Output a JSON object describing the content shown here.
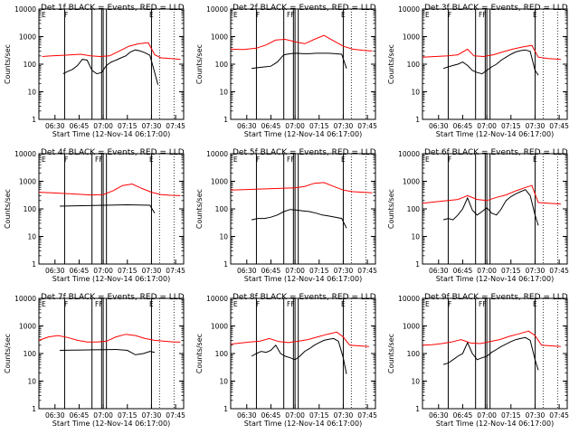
{
  "figure": {
    "background": "#ffffff",
    "colors": {
      "events": "#000000",
      "lld": "#ff0000",
      "axes": "#000000"
    }
  },
  "chart_data": [
    {
      "type": "line",
      "title": "Det 1f BLACK = Events, RED = LLD",
      "xlabel": "Start Time (12-Nov-14 06:17:00)",
      "ylabel": "Counts/sec",
      "yscale": "log",
      "ylim": [
        1,
        10000
      ],
      "yticks": [
        "1",
        "10",
        "100",
        "1000",
        "10000"
      ],
      "xticks": [
        "06:30",
        "06:45",
        "07:00",
        "07:15",
        "07:30",
        "07:45"
      ],
      "markers": [
        "E",
        "F",
        "E"
      ],
      "series": [
        {
          "name": "Events",
          "color": "#000000",
          "x": [
            "06:35",
            "06:38",
            "06:41",
            "06:44",
            "06:47",
            "06:50",
            "06:53",
            "06:56",
            "06:59",
            "07:02",
            "07:05",
            "07:08",
            "07:11",
            "07:14",
            "07:17",
            "07:20",
            "07:23",
            "07:26",
            "07:29",
            "07:32",
            "07:34"
          ],
          "values": [
            45,
            55,
            65,
            90,
            150,
            140,
            60,
            45,
            50,
            90,
            120,
            140,
            170,
            200,
            280,
            330,
            300,
            260,
            210,
            50,
            18
          ]
        },
        {
          "name": "LLD",
          "color": "#ff0000",
          "x": [
            "06:22",
            "06:28",
            "06:34",
            "06:40",
            "06:46",
            "06:52",
            "06:58",
            "07:04",
            "07:10",
            "07:16",
            "07:22",
            "07:28",
            "07:32",
            "07:36",
            "07:42",
            "07:48"
          ],
          "values": [
            190,
            200,
            210,
            220,
            230,
            200,
            190,
            200,
            300,
            450,
            550,
            600,
            220,
            170,
            160,
            150
          ]
        }
      ]
    },
    {
      "type": "line",
      "title": "Det 2f BLACK = Events, RED = LLD",
      "xlabel": "Start Time (12-Nov-14 06:17:00)",
      "ylabel": "Counts/sec",
      "yscale": "log",
      "ylim": [
        1,
        10000
      ],
      "yticks": [
        "1",
        "10",
        "100",
        "1000",
        "10000"
      ],
      "xticks": [
        "06:30",
        "06:45",
        "07:00",
        "07:15",
        "07:30",
        "07:45"
      ],
      "markers": [
        "E",
        "F",
        "FF",
        "E"
      ],
      "series": [
        {
          "name": "Events",
          "color": "#000000",
          "x": [
            "06:33",
            "06:37",
            "06:41",
            "06:45",
            "06:49",
            "06:53",
            "06:57",
            "07:01",
            "07:05",
            "07:09",
            "07:13",
            "07:17",
            "07:21",
            "07:25",
            "07:29",
            "07:32"
          ],
          "values": [
            70,
            75,
            80,
            85,
            120,
            220,
            240,
            250,
            240,
            240,
            250,
            250,
            250,
            240,
            230,
            70
          ]
        },
        {
          "name": "LLD",
          "color": "#ff0000",
          "x": [
            "06:20",
            "06:28",
            "06:36",
            "06:42",
            "06:48",
            "06:54",
            "07:00",
            "07:06",
            "07:12",
            "07:18",
            "07:24",
            "07:30",
            "07:36",
            "07:42",
            "07:48"
          ],
          "values": [
            350,
            340,
            380,
            500,
            750,
            800,
            650,
            550,
            800,
            1100,
            700,
            450,
            350,
            320,
            300
          ]
        }
      ]
    },
    {
      "type": "line",
      "title": "Det 3f BLACK = Events, RED = LLD",
      "xlabel": "Start Time (12-Nov-14 06:17:00)",
      "ylabel": "Counts/sec",
      "yscale": "log",
      "ylim": [
        1,
        10000
      ],
      "yticks": [
        "1",
        "10",
        "100",
        "1000",
        "10000"
      ],
      "xticks": [
        "06:30",
        "06:45",
        "07:00",
        "07:15",
        "07:30",
        "07:45"
      ],
      "markers": [
        "E",
        "F",
        "FF",
        "E"
      ],
      "series": [
        {
          "name": "Events",
          "color": "#000000",
          "x": [
            "06:33",
            "06:36",
            "06:39",
            "06:42",
            "06:45",
            "06:48",
            "06:51",
            "06:54",
            "06:57",
            "07:00",
            "07:03",
            "07:06",
            "07:09",
            "07:12",
            "07:15",
            "07:18",
            "07:21",
            "07:24",
            "07:27",
            "07:30",
            "07:32"
          ],
          "values": [
            70,
            80,
            90,
            100,
            120,
            90,
            60,
            50,
            45,
            60,
            80,
            100,
            140,
            180,
            230,
            280,
            310,
            330,
            290,
            60,
            40
          ]
        },
        {
          "name": "LLD",
          "color": "#ff0000",
          "x": [
            "06:20",
            "06:28",
            "06:36",
            "06:42",
            "06:48",
            "06:52",
            "06:58",
            "07:04",
            "07:10",
            "07:16",
            "07:22",
            "07:28",
            "07:32",
            "07:38",
            "07:46"
          ],
          "values": [
            180,
            190,
            200,
            220,
            350,
            200,
            190,
            220,
            280,
            350,
            420,
            480,
            180,
            160,
            150
          ]
        }
      ]
    },
    {
      "type": "line",
      "title": "Det 4f BLACK = Events, RED = LLD",
      "xlabel": "Start Time (12-Nov-14 06:17:00)",
      "ylabel": "Counts/sec",
      "yscale": "log",
      "ylim": [
        1,
        10000
      ],
      "yticks": [
        "1",
        "10",
        "100",
        "1000",
        "10000"
      ],
      "xticks": [
        "06:30",
        "06:45",
        "07:00",
        "07:15",
        "07:30",
        "07:45"
      ],
      "markers": [
        "E",
        "F",
        "FF",
        "E"
      ],
      "series": [
        {
          "name": "Events",
          "color": "#000000",
          "x": [
            "06:33",
            "06:40",
            "06:47",
            "06:54",
            "07:01",
            "07:08",
            "07:15",
            "07:22",
            "07:29",
            "07:32"
          ],
          "values": [
            125,
            128,
            130,
            132,
            135,
            138,
            140,
            138,
            135,
            70
          ]
        },
        {
          "name": "LLD",
          "color": "#ff0000",
          "x": [
            "06:20",
            "06:28",
            "06:36",
            "06:44",
            "06:52",
            "07:00",
            "07:06",
            "07:12",
            "07:18",
            "07:24",
            "07:30",
            "07:36",
            "07:42",
            "07:48"
          ],
          "values": [
            400,
            380,
            360,
            340,
            320,
            330,
            450,
            700,
            800,
            550,
            400,
            330,
            310,
            300
          ]
        }
      ]
    },
    {
      "type": "line",
      "title": "Det 5f BLACK = Events, RED = LLD",
      "xlabel": "Start Time (12-Nov-14 06:17:00)",
      "ylabel": "Counts/sec",
      "yscale": "log",
      "ylim": [
        1,
        10000
      ],
      "yticks": [
        "1",
        "10",
        "100",
        "1000",
        "10000"
      ],
      "xticks": [
        "06:30",
        "06:45",
        "07:00",
        "07:15",
        "07:30",
        "07:45"
      ],
      "markers": [
        "E",
        "F",
        "FF",
        "E"
      ],
      "series": [
        {
          "name": "Events",
          "color": "#000000",
          "x": [
            "06:33",
            "06:37",
            "06:41",
            "06:45",
            "06:49",
            "06:53",
            "06:57",
            "07:01",
            "07:05",
            "07:09",
            "07:13",
            "07:17",
            "07:21",
            "07:25",
            "07:29",
            "07:32"
          ],
          "values": [
            40,
            45,
            45,
            50,
            60,
            80,
            95,
            90,
            85,
            80,
            70,
            60,
            55,
            50,
            45,
            20
          ]
        },
        {
          "name": "LLD",
          "color": "#ff0000",
          "x": [
            "06:20",
            "06:28",
            "06:36",
            "06:44",
            "06:52",
            "07:00",
            "07:06",
            "07:12",
            "07:18",
            "07:24",
            "07:30",
            "07:36",
            "07:42",
            "07:48"
          ],
          "values": [
            480,
            500,
            520,
            540,
            560,
            580,
            650,
            850,
            900,
            650,
            480,
            420,
            400,
            380
          ]
        }
      ]
    },
    {
      "type": "line",
      "title": "Det 6f BLACK = Events, RED = LLD",
      "xlabel": "Start Time (12-Nov-14 06:17:00)",
      "ylabel": "Counts/sec",
      "yscale": "log",
      "ylim": [
        1,
        10000
      ],
      "yticks": [
        "1",
        "10",
        "100",
        "1000",
        "10000"
      ],
      "xticks": [
        "06:30",
        "06:45",
        "07:00",
        "07:15",
        "07:30",
        "07:45"
      ],
      "markers": [
        "E",
        "F",
        "E"
      ],
      "series": [
        {
          "name": "Events",
          "color": "#000000",
          "x": [
            "06:33",
            "06:36",
            "06:39",
            "06:42",
            "06:45",
            "06:48",
            "06:51",
            "06:54",
            "06:57",
            "07:00",
            "07:03",
            "07:06",
            "07:09",
            "07:12",
            "07:15",
            "07:18",
            "07:21",
            "07:24",
            "07:27",
            "07:30",
            "07:32"
          ],
          "values": [
            40,
            45,
            40,
            60,
            100,
            250,
            90,
            60,
            80,
            110,
            70,
            60,
            100,
            200,
            280,
            350,
            420,
            500,
            300,
            60,
            25
          ]
        },
        {
          "name": "LLD",
          "color": "#ff0000",
          "x": [
            "06:20",
            "06:28",
            "06:36",
            "06:42",
            "06:48",
            "06:54",
            "07:00",
            "07:06",
            "07:12",
            "07:18",
            "07:24",
            "07:28",
            "07:32",
            "07:38",
            "07:46"
          ],
          "values": [
            160,
            180,
            200,
            220,
            300,
            220,
            200,
            260,
            320,
            450,
            600,
            700,
            170,
            160,
            150
          ]
        }
      ]
    },
    {
      "type": "line",
      "title": "Det 7f BLACK = Events, RED = LLD",
      "xlabel": "Start Time (12-Nov-14 06:17:00)",
      "ylabel": "Counts/sec",
      "yscale": "log",
      "ylim": [
        1,
        10000
      ],
      "yticks": [
        "1",
        "10",
        "100",
        "1000",
        "10000"
      ],
      "xticks": [
        "06:30",
        "06:45",
        "07:00",
        "07:15",
        "07:30",
        "07:45"
      ],
      "markers": [
        "E",
        "F",
        "FF",
        "E"
      ],
      "series": [
        {
          "name": "Events",
          "color": "#000000",
          "x": [
            "06:33",
            "06:40",
            "06:47",
            "06:54",
            "07:01",
            "07:08",
            "07:15",
            "07:20",
            "07:25",
            "07:29",
            "07:32"
          ],
          "values": [
            130,
            132,
            134,
            136,
            138,
            140,
            130,
            90,
            100,
            120,
            110
          ]
        },
        {
          "name": "LLD",
          "color": "#ff0000",
          "x": [
            "06:20",
            "06:26",
            "06:32",
            "06:38",
            "06:44",
            "06:50",
            "06:56",
            "07:02",
            "07:08",
            "07:14",
            "07:20",
            "07:26",
            "07:32",
            "07:38",
            "07:44",
            "07:48"
          ],
          "values": [
            300,
            400,
            450,
            380,
            300,
            260,
            260,
            280,
            400,
            500,
            450,
            350,
            300,
            280,
            260,
            260
          ]
        }
      ]
    },
    {
      "type": "line",
      "title": "Det 8f BLACK = Events, RED = LLD",
      "xlabel": "Start Time (12-Nov-14 06:17:00)",
      "ylabel": "Counts/sec",
      "yscale": "log",
      "ylim": [
        1,
        10000
      ],
      "yticks": [
        "1",
        "10",
        "100",
        "1000",
        "10000"
      ],
      "xticks": [
        "06:30",
        "06:45",
        "07:00",
        "07:15",
        "07:30",
        "07:45"
      ],
      "markers": [
        "E",
        "F",
        "FF",
        "E"
      ],
      "series": [
        {
          "name": "Events",
          "color": "#000000",
          "x": [
            "06:33",
            "06:36",
            "06:39",
            "06:42",
            "06:45",
            "06:48",
            "06:51",
            "06:54",
            "06:57",
            "07:00",
            "07:03",
            "07:06",
            "07:09",
            "07:12",
            "07:15",
            "07:18",
            "07:21",
            "07:24",
            "07:27",
            "07:30",
            "07:32"
          ],
          "values": [
            80,
            100,
            120,
            110,
            130,
            200,
            100,
            80,
            70,
            60,
            80,
            120,
            150,
            200,
            250,
            300,
            330,
            350,
            280,
            70,
            18
          ]
        },
        {
          "name": "LLD",
          "color": "#ff0000",
          "x": [
            "06:20",
            "06:26",
            "06:32",
            "06:38",
            "06:44",
            "06:50",
            "06:56",
            "07:02",
            "07:08",
            "07:14",
            "07:20",
            "07:26",
            "07:30",
            "07:34",
            "07:40",
            "07:46"
          ],
          "values": [
            220,
            240,
            260,
            280,
            350,
            270,
            250,
            280,
            320,
            400,
            500,
            600,
            400,
            200,
            190,
            180
          ]
        }
      ]
    },
    {
      "type": "line",
      "title": "Det 9f BLACK = Events, RED = LLD",
      "xlabel": "Start Time (12-Nov-14 06:17:00)",
      "ylabel": "Counts/sec",
      "yscale": "log",
      "ylim": [
        1,
        10000
      ],
      "yticks": [
        "1",
        "10",
        "100",
        "1000",
        "10000"
      ],
      "xticks": [
        "06:30",
        "06:45",
        "07:00",
        "07:15",
        "07:30",
        "07:45"
      ],
      "markers": [
        "E",
        "F",
        "FF",
        "E"
      ],
      "series": [
        {
          "name": "Events",
          "color": "#000000",
          "x": [
            "06:33",
            "06:36",
            "06:39",
            "06:42",
            "06:45",
            "06:48",
            "06:51",
            "06:54",
            "06:57",
            "07:00",
            "07:03",
            "07:06",
            "07:09",
            "07:12",
            "07:15",
            "07:18",
            "07:21",
            "07:24",
            "07:27",
            "07:30",
            "07:32"
          ],
          "values": [
            40,
            45,
            60,
            80,
            100,
            250,
            100,
            60,
            70,
            80,
            110,
            140,
            180,
            220,
            270,
            320,
            350,
            380,
            300,
            60,
            25
          ]
        },
        {
          "name": "LLD",
          "color": "#ff0000",
          "x": [
            "06:20",
            "06:26",
            "06:32",
            "06:38",
            "06:44",
            "06:50",
            "06:56",
            "07:02",
            "07:08",
            "07:14",
            "07:20",
            "07:26",
            "07:30",
            "07:34",
            "07:40",
            "07:46"
          ],
          "values": [
            200,
            210,
            230,
            260,
            320,
            240,
            230,
            270,
            320,
            420,
            520,
            650,
            450,
            200,
            190,
            180
          ]
        }
      ]
    }
  ]
}
